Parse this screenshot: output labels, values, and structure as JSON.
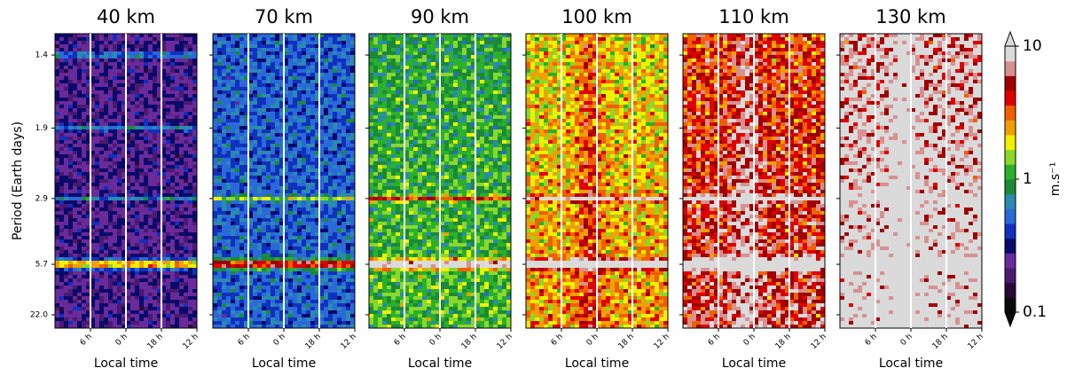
{
  "chart_data": [
    {
      "type": "heatmap",
      "title": "40 km",
      "xlabel": "Local time",
      "ylabel": "Period (Earth days)",
      "xlim": [
        0,
        24
      ],
      "xticks": [
        {
          "value": 6,
          "label": "6 h"
        },
        {
          "value": 12,
          "label": "0 h"
        },
        {
          "value": 18,
          "label": "18 h"
        },
        {
          "value": 24,
          "label": "12 h"
        }
      ],
      "ylim": [
        1.3,
        90
      ],
      "yscale": "reciprocal",
      "yticks": [
        1.4,
        1.9,
        2.9,
        5.7,
        {
          "value": 22,
          "label": "22.0"
        }
      ]
    },
    {
      "type": "heatmap",
      "title": "70 km",
      "xlabel": "Local time",
      "xlim": [
        0,
        24
      ],
      "xticks": [
        {
          "value": 6,
          "label": "6 h"
        },
        {
          "value": 12,
          "label": "0 h"
        },
        {
          "value": 18,
          "label": "18 h"
        },
        {
          "value": 24,
          "label": "12 h"
        }
      ],
      "ylim": [
        1.3,
        90
      ],
      "yscale": "reciprocal",
      "yticks": [
        1.4,
        1.9,
        2.9,
        5.7,
        22
      ]
    },
    {
      "type": "heatmap",
      "title": "90 km",
      "xlabel": "Local time",
      "xlim": [
        0,
        24
      ],
      "xticks": [
        {
          "value": 6,
          "label": "6 h"
        },
        {
          "value": 12,
          "label": "0 h"
        },
        {
          "value": 18,
          "label": "18 h"
        },
        {
          "value": 24,
          "label": "12 h"
        }
      ],
      "ylim": [
        1.3,
        90
      ],
      "yscale": "reciprocal",
      "yticks": [
        1.4,
        1.9,
        2.9,
        5.7,
        22
      ]
    },
    {
      "type": "heatmap",
      "title": "100 km",
      "xlabel": "Local time",
      "xlim": [
        0,
        24
      ],
      "xticks": [
        {
          "value": 6,
          "label": "6 h"
        },
        {
          "value": 12,
          "label": "0 h"
        },
        {
          "value": 18,
          "label": "18 h"
        },
        {
          "value": 24,
          "label": "12 h"
        }
      ],
      "ylim": [
        1.3,
        90
      ],
      "yscale": "reciprocal",
      "yticks": [
        1.4,
        1.9,
        2.9,
        5.7,
        22
      ]
    },
    {
      "type": "heatmap",
      "title": "110 km",
      "xlabel": "Local time",
      "xlim": [
        0,
        24
      ],
      "xticks": [
        {
          "value": 6,
          "label": "6 h"
        },
        {
          "value": 12,
          "label": "0 h"
        },
        {
          "value": 18,
          "label": "18 h"
        },
        {
          "value": 24,
          "label": "12 h"
        }
      ],
      "ylim": [
        1.3,
        90
      ],
      "yscale": "reciprocal",
      "yticks": [
        1.4,
        1.9,
        2.9,
        5.7,
        22
      ]
    },
    {
      "type": "heatmap",
      "title": "130 km",
      "xlabel": "Local time",
      "xlim": [
        0,
        24
      ],
      "xticks": [
        {
          "value": 6,
          "label": "6 h"
        },
        {
          "value": 12,
          "label": "0 h"
        },
        {
          "value": 18,
          "label": "18 h"
        },
        {
          "value": 24,
          "label": "12 h"
        }
      ],
      "ylim": [
        1.3,
        90
      ],
      "yscale": "reciprocal",
      "yticks": [
        1.4,
        1.9,
        2.9,
        5.7,
        22
      ]
    }
  ],
  "colorbar": {
    "label": "m.s⁻¹",
    "scale": "log",
    "lim": [
      0.1,
      10
    ],
    "ticks": [
      0.1,
      1,
      10
    ],
    "colormap": [
      "#0a0a0a",
      "#2a0a3a",
      "#4a1a70",
      "#6a2a9a",
      "#0a0a6a",
      "#1030c0",
      "#2a6ad8",
      "#2a8ab0",
      "#1a8a3a",
      "#2ab02a",
      "#8ad82a",
      "#f0f000",
      "#f0a000",
      "#f06000",
      "#e00000",
      "#a00000",
      "#d89090",
      "#dadada"
    ]
  }
}
